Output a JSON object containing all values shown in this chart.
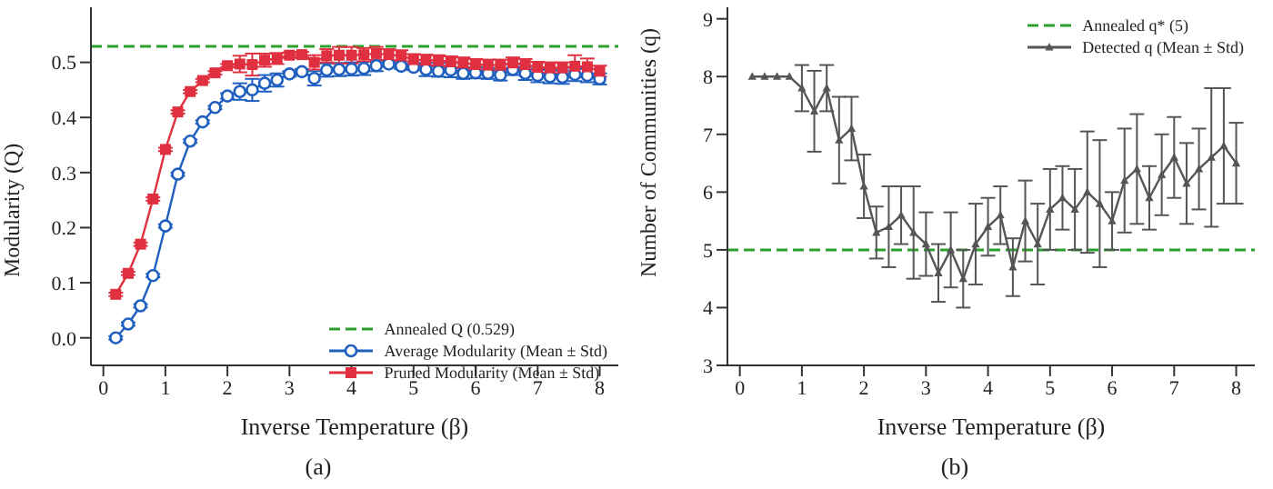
{
  "chart_data": [
    {
      "type": "line",
      "xlabel": "Inverse Temperature (β)",
      "ylabel": "Modularity (Q)",
      "annotations": [
        "(a)"
      ],
      "x": [
        0.2,
        0.4,
        0.6,
        0.8,
        1.0,
        1.2,
        1.4,
        1.6,
        1.8,
        2.0,
        2.2,
        2.4,
        2.6,
        2.8,
        3.0,
        3.2,
        3.4,
        3.6,
        3.8,
        4.0,
        4.2,
        4.4,
        4.6,
        4.8,
        5.0,
        5.2,
        5.4,
        5.6,
        5.8,
        6.0,
        6.2,
        6.4,
        6.6,
        6.8,
        7.0,
        7.2,
        7.4,
        7.6,
        7.8,
        8.0
      ],
      "xlim": [
        -0.2,
        8.3
      ],
      "xticks": [
        0,
        1,
        2,
        3,
        4,
        5,
        6,
        7,
        8
      ],
      "ylim": [
        -0.05,
        0.6
      ],
      "yticks": [
        {
          "value": 0,
          "label": "0.0"
        },
        {
          "value": 0.1,
          "label": "0.1"
        },
        {
          "value": 0.2,
          "label": "0.2"
        },
        {
          "value": 0.3,
          "label": "0.3"
        },
        {
          "value": 0.4,
          "label": "0.4"
        },
        {
          "value": 0.5,
          "label": "0.5"
        }
      ],
      "grid": false,
      "legend": "bottom right",
      "ref_lines": [
        {
          "axis": "y",
          "value": 0.529,
          "label": "Annealed Q (0.529)",
          "color": "#2ca02c",
          "line_style": "dashed"
        }
      ],
      "series": [
        {
          "name": "Average Modularity (Mean ± Std)",
          "color": "#1f5fbf",
          "marker": "circle",
          "values": [
            0.0,
            0.025,
            0.058,
            0.113,
            0.203,
            0.297,
            0.357,
            0.392,
            0.418,
            0.439,
            0.447,
            0.45,
            0.462,
            0.468,
            0.479,
            0.483,
            0.471,
            0.486,
            0.487,
            0.488,
            0.489,
            0.494,
            0.497,
            0.493,
            0.491,
            0.487,
            0.484,
            0.486,
            0.48,
            0.481,
            0.48,
            0.477,
            0.487,
            0.48,
            0.476,
            0.474,
            0.473,
            0.478,
            0.476,
            0.47
          ],
          "errors": [
            0.003,
            0.003,
            0.003,
            0.003,
            0.003,
            0.003,
            0.003,
            0.003,
            0.003,
            0.005,
            0.015,
            0.02,
            0.015,
            0.012,
            0.005,
            0.005,
            0.013,
            0.012,
            0.012,
            0.012,
            0.012,
            0.01,
            0.005,
            0.005,
            0.005,
            0.012,
            0.01,
            0.013,
            0.01,
            0.01,
            0.01,
            0.01,
            0.01,
            0.012,
            0.012,
            0.012,
            0.012,
            0.012,
            0.012,
            0.01
          ]
        },
        {
          "name": "Pruned Modularity (Mean ± Std)",
          "color": "#e03040",
          "marker": "square",
          "values": [
            0.079,
            0.117,
            0.17,
            0.252,
            0.342,
            0.41,
            0.447,
            0.467,
            0.481,
            0.494,
            0.497,
            0.496,
            0.504,
            0.507,
            0.513,
            0.514,
            0.5,
            0.512,
            0.513,
            0.513,
            0.514,
            0.516,
            0.514,
            0.512,
            0.505,
            0.504,
            0.503,
            0.501,
            0.499,
            0.496,
            0.495,
            0.495,
            0.499,
            0.496,
            0.491,
            0.49,
            0.49,
            0.493,
            0.492,
            0.484
          ],
          "errors": [
            0.003,
            0.003,
            0.003,
            0.003,
            0.003,
            0.003,
            0.003,
            0.003,
            0.003,
            0.003,
            0.015,
            0.02,
            0.012,
            0.01,
            0.005,
            0.005,
            0.013,
            0.012,
            0.015,
            0.015,
            0.012,
            0.012,
            0.01,
            0.01,
            0.01,
            0.01,
            0.01,
            0.01,
            0.01,
            0.01,
            0.01,
            0.01,
            0.01,
            0.01,
            0.01,
            0.01,
            0.01,
            0.02,
            0.015,
            0.01
          ]
        }
      ]
    },
    {
      "type": "line",
      "xlabel": "Inverse Temperature (β)",
      "ylabel": "Number of Communities (q)",
      "annotations": [
        "(b)"
      ],
      "x": [
        0.2,
        0.4,
        0.6,
        0.8,
        1.0,
        1.2,
        1.4,
        1.6,
        1.8,
        2.0,
        2.2,
        2.4,
        2.6,
        2.8,
        3.0,
        3.2,
        3.4,
        3.6,
        3.8,
        4.0,
        4.2,
        4.4,
        4.6,
        4.8,
        5.0,
        5.2,
        5.4,
        5.6,
        5.8,
        6.0,
        6.2,
        6.4,
        6.6,
        6.8,
        7.0,
        7.2,
        7.4,
        7.6,
        7.8,
        8.0
      ],
      "xlim": [
        -0.2,
        8.3
      ],
      "xticks": [
        0,
        1,
        2,
        3,
        4,
        5,
        6,
        7,
        8
      ],
      "ylim": [
        3,
        9.2
      ],
      "yticks": [
        3,
        4,
        5,
        6,
        7,
        8,
        9
      ],
      "grid": false,
      "legend": "top right",
      "ref_lines": [
        {
          "axis": "y",
          "value": 5,
          "label": "Annealed q* (5)",
          "color": "#2ca02c",
          "line_style": "dashed"
        }
      ],
      "series": [
        {
          "name": "Detected q (Mean ± Std)",
          "color": "#555555",
          "marker": "triangle",
          "values": [
            8,
            8,
            8,
            8,
            7.8,
            7.4,
            7.8,
            6.9,
            7.1,
            6.1,
            5.3,
            5.4,
            5.6,
            5.3,
            5.1,
            4.6,
            5.0,
            4.5,
            5.1,
            5.4,
            5.6,
            4.7,
            5.5,
            5.1,
            5.7,
            5.9,
            5.7,
            6.0,
            5.8,
            5.5,
            6.2,
            6.4,
            5.9,
            6.3,
            6.6,
            6.15,
            6.4,
            6.6,
            6.8,
            6.5
          ],
          "errors": [
            0,
            0,
            0,
            0,
            0.4,
            0.7,
            0.4,
            0.75,
            0.55,
            0.55,
            0.45,
            0.7,
            0.5,
            0.8,
            0.55,
            0.5,
            0.65,
            0.5,
            0.7,
            0.5,
            0.5,
            0.5,
            0.7,
            0.7,
            0.7,
            0.55,
            0.7,
            1.05,
            1.1,
            0.5,
            0.9,
            0.95,
            0.55,
            0.7,
            0.7,
            0.7,
            0.7,
            1.2,
            1.0,
            0.7
          ]
        }
      ]
    }
  ]
}
